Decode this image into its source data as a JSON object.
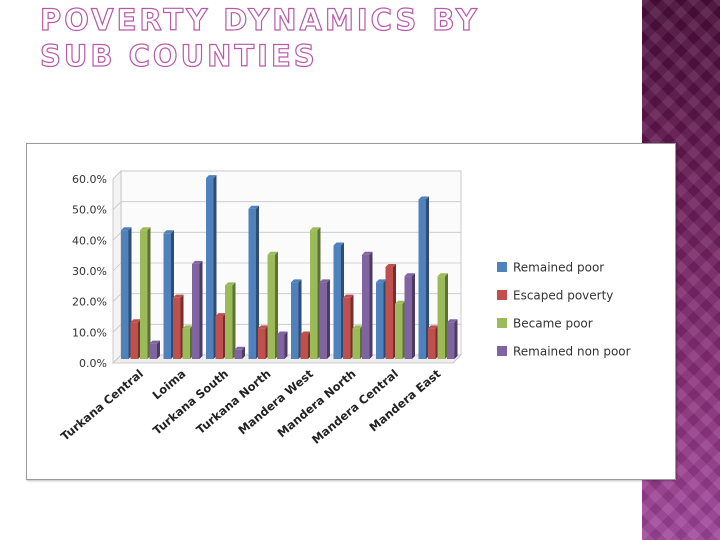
{
  "slide": {
    "title": "POVERTY DYNAMICS BY SUB COUNTIES"
  },
  "colors": {
    "remained_poor": "#4f81bd",
    "escaped_poverty": "#c0504d",
    "became_poor": "#9bbb59",
    "remained_non_poor": "#8064a2",
    "accent_band": "#6a1b57",
    "title_outline": "#b85aa8"
  },
  "chart_data": {
    "type": "bar",
    "title": "",
    "xlabel": "",
    "ylabel": "",
    "ylim": [
      0,
      60
    ],
    "y_ticks": [
      "0.0%",
      "10.0%",
      "20.0%",
      "30.0%",
      "40.0%",
      "50.0%",
      "60.0%"
    ],
    "grid": true,
    "legend_position": "right",
    "categories": [
      "Turkana Central",
      "Loima",
      "Turkana South",
      "Turkana North",
      "Mandera West",
      "Mandera North",
      "Mandera Central",
      "Mandera East"
    ],
    "series": [
      {
        "name": "Remained poor",
        "values": [
          42,
          41,
          59,
          49,
          25,
          37,
          25,
          52
        ]
      },
      {
        "name": "Escaped poverty",
        "values": [
          12,
          20,
          14,
          10,
          8,
          20,
          30,
          10
        ]
      },
      {
        "name": "Became poor",
        "values": [
          42,
          10,
          24,
          34,
          42,
          10,
          18,
          27
        ]
      },
      {
        "name": "Remained non poor",
        "values": [
          5,
          31,
          3,
          8,
          25,
          34,
          27,
          12
        ]
      }
    ]
  }
}
